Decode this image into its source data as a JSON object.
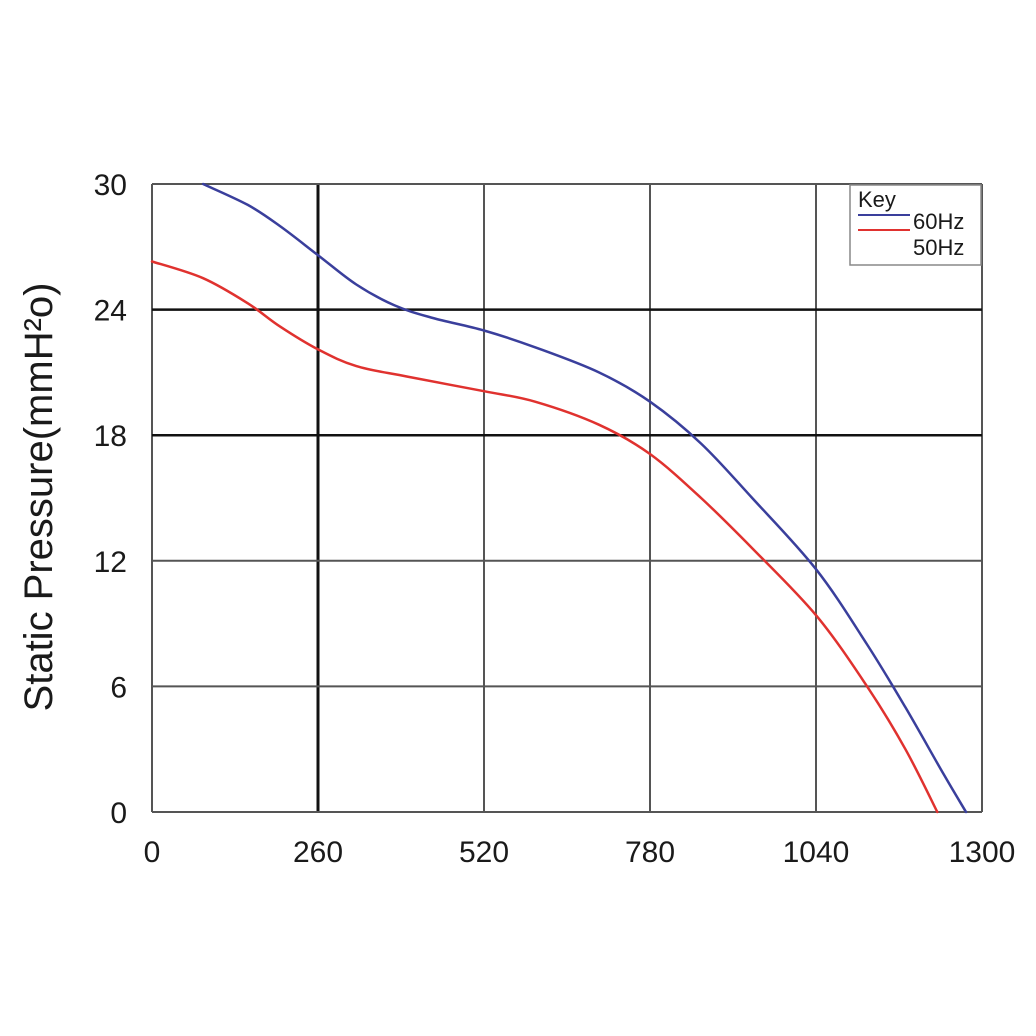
{
  "chart_data": {
    "type": "line",
    "title": "",
    "xlabel": "",
    "ylabel": "Static Pressure(mmH²o)",
    "xlim": [
      0,
      1300
    ],
    "ylim": [
      0,
      30
    ],
    "xticks": [
      0,
      260,
      520,
      780,
      1040,
      1300
    ],
    "xtick_labels": [
      "0",
      "260",
      "520",
      "780",
      "1040",
      "1300"
    ],
    "yticks": [
      0,
      6,
      12,
      18,
      24,
      30
    ],
    "ytick_labels": [
      "0",
      "6",
      "12",
      "18",
      "24",
      "30"
    ],
    "grid": true,
    "legend": {
      "title": "Key",
      "placement": "top-right"
    },
    "series": [
      {
        "name": "60Hz",
        "color": "#3a3f9c",
        "x": [
          80,
          150,
          200,
          260,
          320,
          380,
          440,
          520,
          600,
          700,
          780,
          860,
          940,
          1040,
          1120,
          1180,
          1240,
          1275
        ],
        "y": [
          30.0,
          29.0,
          28.0,
          26.6,
          25.2,
          24.2,
          23.6,
          23.0,
          22.2,
          21.0,
          19.6,
          17.6,
          15.0,
          11.6,
          8.0,
          5.0,
          1.8,
          0.0
        ]
      },
      {
        "name": "50Hz",
        "color": "#e0322f",
        "x": [
          0,
          80,
          150,
          200,
          260,
          320,
          400,
          520,
          600,
          700,
          780,
          860,
          940,
          1040,
          1120,
          1180,
          1230
        ],
        "y": [
          26.3,
          25.5,
          24.3,
          23.2,
          22.1,
          21.3,
          20.8,
          20.1,
          19.6,
          18.5,
          17.1,
          15.0,
          12.6,
          9.4,
          6.0,
          3.0,
          0.0
        ]
      }
    ]
  }
}
